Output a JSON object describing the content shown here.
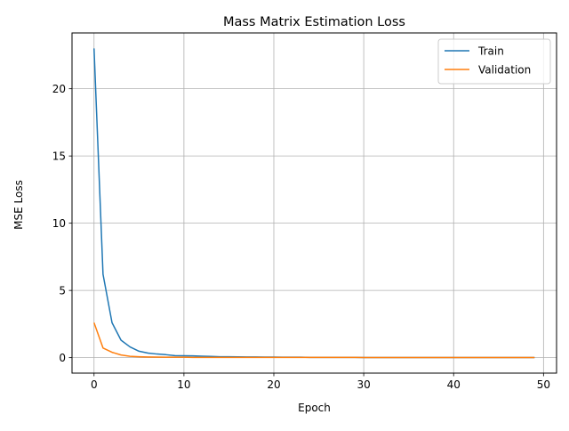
{
  "chart_data": {
    "type": "line",
    "title": "Mass Matrix Estimation Loss",
    "xlabel": "Epoch",
    "ylabel": "MSE Loss",
    "xlim": [
      -2.45,
      51.45
    ],
    "ylim": [
      -1.15,
      24.15
    ],
    "xticks": [
      0,
      10,
      20,
      30,
      40,
      50
    ],
    "yticks": [
      0,
      5,
      10,
      15,
      20
    ],
    "grid": true,
    "legend_position": "top-right",
    "x": [
      0,
      1,
      2,
      3,
      4,
      5,
      6,
      7,
      8,
      9,
      10,
      11,
      12,
      13,
      14,
      15,
      16,
      17,
      18,
      19,
      20,
      21,
      22,
      23,
      24,
      25,
      26,
      27,
      28,
      29,
      30,
      31,
      32,
      33,
      34,
      35,
      36,
      37,
      38,
      39,
      40,
      41,
      42,
      43,
      44,
      45,
      46,
      47,
      48,
      49
    ],
    "series": [
      {
        "name": "Train",
        "color": "#1f77b4",
        "values": [
          23.0,
          6.2,
          2.6,
          1.3,
          0.8,
          0.48,
          0.34,
          0.27,
          0.22,
          0.15,
          0.14,
          0.13,
          0.11,
          0.09,
          0.07,
          0.07,
          0.06,
          0.05,
          0.05,
          0.04,
          0.04,
          0.03,
          0.03,
          0.03,
          0.02,
          0.02,
          0.02,
          0.02,
          0.02,
          0.02,
          0.01,
          0.01,
          0.01,
          0.01,
          0.01,
          0.01,
          0.01,
          0.01,
          0.01,
          0.01,
          0.01,
          0.01,
          0.01,
          0.01,
          0.01,
          0.01,
          0.01,
          0.01,
          0.01,
          0.01
        ]
      },
      {
        "name": "Validation",
        "color": "#ff7f0e",
        "values": [
          2.6,
          0.72,
          0.4,
          0.2,
          0.1,
          0.07,
          0.05,
          0.04,
          0.03,
          0.03,
          0.03,
          0.02,
          0.02,
          0.02,
          0.02,
          0.02,
          0.02,
          0.02,
          0.02,
          0.02,
          0.02,
          0.02,
          0.02,
          0.02,
          0.02,
          0.02,
          0.02,
          0.02,
          0.02,
          0.02,
          0.01,
          0.01,
          0.01,
          0.01,
          0.01,
          0.01,
          0.01,
          0.01,
          0.01,
          0.01,
          0.01,
          0.01,
          0.01,
          0.01,
          0.01,
          0.01,
          0.01,
          0.01,
          0.01,
          0.01
        ]
      }
    ]
  }
}
